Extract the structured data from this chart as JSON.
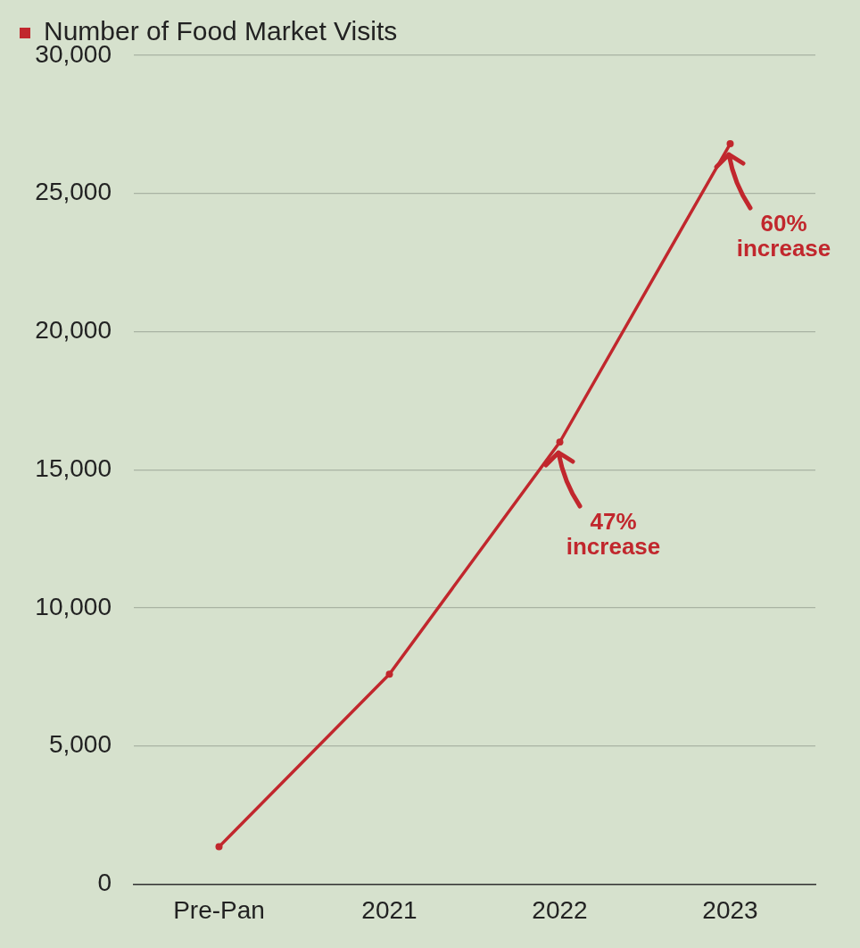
{
  "chart_data": {
    "type": "line",
    "categories": [
      "Pre-Pan",
      "2021",
      "2022",
      "2023"
    ],
    "series": [
      {
        "name": "Number of Food Market Visits",
        "color": "#c1272d",
        "values": [
          1350,
          7600,
          16000,
          26800
        ]
      }
    ],
    "ylim": [
      0,
      30000
    ],
    "yticks": [
      0,
      {
        "value": 5000,
        "label": "5,000"
      },
      {
        "value": 10000,
        "label": "10,000"
      },
      {
        "value": 15000,
        "label": "15,000"
      },
      {
        "value": 20000,
        "label": "20,000"
      },
      {
        "value": 25000,
        "label": "25,000"
      },
      {
        "value": 30000,
        "label": "30,000"
      }
    ],
    "grid": "y",
    "legend": "top left",
    "marker": "circle",
    "line_style": "solid",
    "annotations": [
      {
        "text": "47% increase",
        "x": "2022",
        "y": 16000
      },
      {
        "text": "60% increase",
        "x": "2023",
        "y": 26800
      }
    ]
  }
}
